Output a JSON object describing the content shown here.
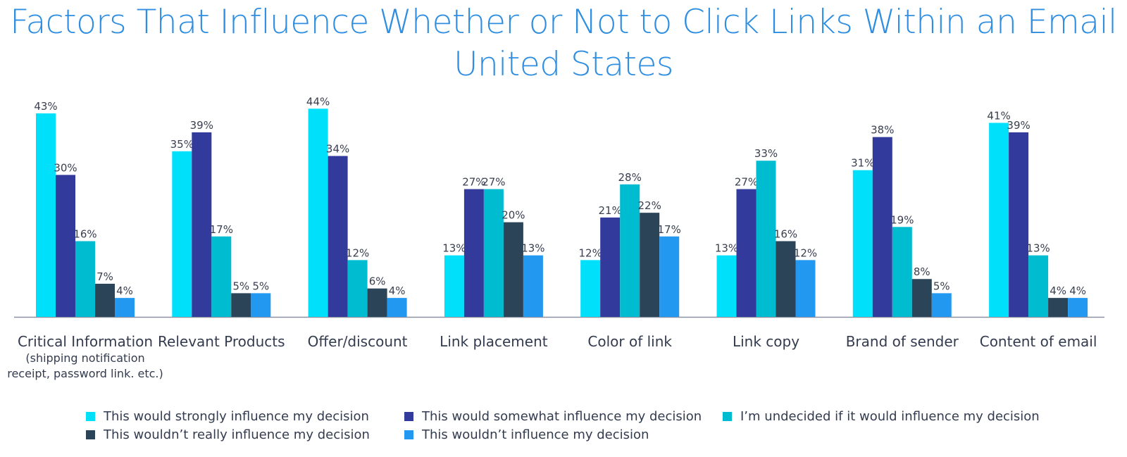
{
  "chart_data": {
    "type": "bar",
    "title": "Factors That Influence Whether or Not to Click Links Within an Email",
    "subtitle": "United States",
    "categories": [
      {
        "label": "Critical Information",
        "sublabel": [
          "(shipping notification",
          "receipt, password link. etc.)"
        ]
      },
      {
        "label": "Relevant Products",
        "sublabel": []
      },
      {
        "label": "Offer/discount",
        "sublabel": []
      },
      {
        "label": "Link placement",
        "sublabel": []
      },
      {
        "label": "Color of link",
        "sublabel": []
      },
      {
        "label": "Link copy",
        "sublabel": []
      },
      {
        "label": "Brand of sender",
        "sublabel": []
      },
      {
        "label": "Content of email",
        "sublabel": []
      }
    ],
    "series": [
      {
        "name": "This would strongly influence my decision",
        "color": "#00e0fb",
        "values": [
          43,
          35,
          44,
          13,
          12,
          13,
          31,
          41
        ]
      },
      {
        "name": "This would somewhat influence my decision",
        "color": "#323b9c",
        "values": [
          30,
          39,
          34,
          27,
          21,
          27,
          38,
          39
        ]
      },
      {
        "name": "I’m undecided if it would influence my decision",
        "color": "#00bcd1",
        "values": [
          16,
          17,
          12,
          27,
          28,
          33,
          19,
          13
        ]
      },
      {
        "name": "This wouldn’t really influence my decision",
        "color": "#2b4457",
        "values": [
          7,
          5,
          6,
          20,
          22,
          16,
          8,
          4
        ]
      },
      {
        "name": "This wouldn’t influence my decision",
        "color": "#2398f0",
        "values": [
          4,
          5,
          4,
          13,
          17,
          12,
          5,
          4
        ]
      }
    ],
    "value_suffix": "%",
    "ylim": [
      0,
      45
    ],
    "grid": false,
    "legend_position": "bottom"
  }
}
